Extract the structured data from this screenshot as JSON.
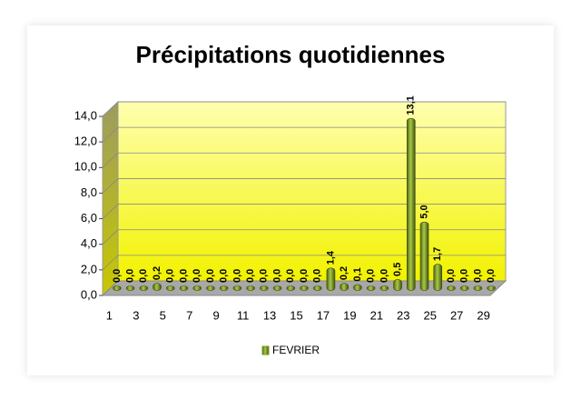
{
  "chart_data": {
    "type": "bar3d",
    "title": "Précipitations quotidiennes",
    "categories": [
      "1",
      null,
      "3",
      null,
      "5",
      null,
      "7",
      null,
      "9",
      null,
      "11",
      null,
      "13",
      null,
      "15",
      null,
      "17",
      null,
      "19",
      null,
      "21",
      null,
      "23",
      null,
      "25",
      null,
      "27",
      null,
      "29"
    ],
    "series": [
      {
        "name": "FEVRIER",
        "color": "#7a9a1e",
        "values": [
          0,
          0,
          0,
          0.2,
          0,
          0,
          0,
          0,
          0,
          0,
          0,
          0,
          0,
          0,
          0,
          0,
          1.4,
          0.2,
          0.1,
          0,
          0,
          0.5,
          13.1,
          5.0,
          1.7,
          0,
          0,
          0,
          0
        ],
        "value_labels": [
          "0,0",
          "0,0",
          "0,0",
          "0,2",
          "0,0",
          "0,0",
          "0,0",
          "0,0",
          "0,0",
          "0,0",
          "0,0",
          "0,0",
          "0,0",
          "0,0",
          "0,0",
          "0,0",
          "1,4",
          "0,2",
          "0,1",
          "0,0",
          "0,0",
          "0,5",
          "13,1",
          "5,0",
          "1,7",
          "0,0",
          "0,0",
          "0,0",
          "0,0"
        ]
      }
    ],
    "ylim": [
      0,
      14
    ],
    "yticks": [
      {
        "value": 0,
        "label": "0,0"
      },
      {
        "value": 2,
        "label": "2,0"
      },
      {
        "value": 4,
        "label": "4,0"
      },
      {
        "value": 6,
        "label": "6,0"
      },
      {
        "value": 8,
        "label": "8,0"
      },
      {
        "value": 10,
        "label": "10,0"
      },
      {
        "value": 12,
        "label": "12,0"
      },
      {
        "value": 14,
        "label": "14,0"
      }
    ],
    "grid": true,
    "legend": "bottom"
  }
}
